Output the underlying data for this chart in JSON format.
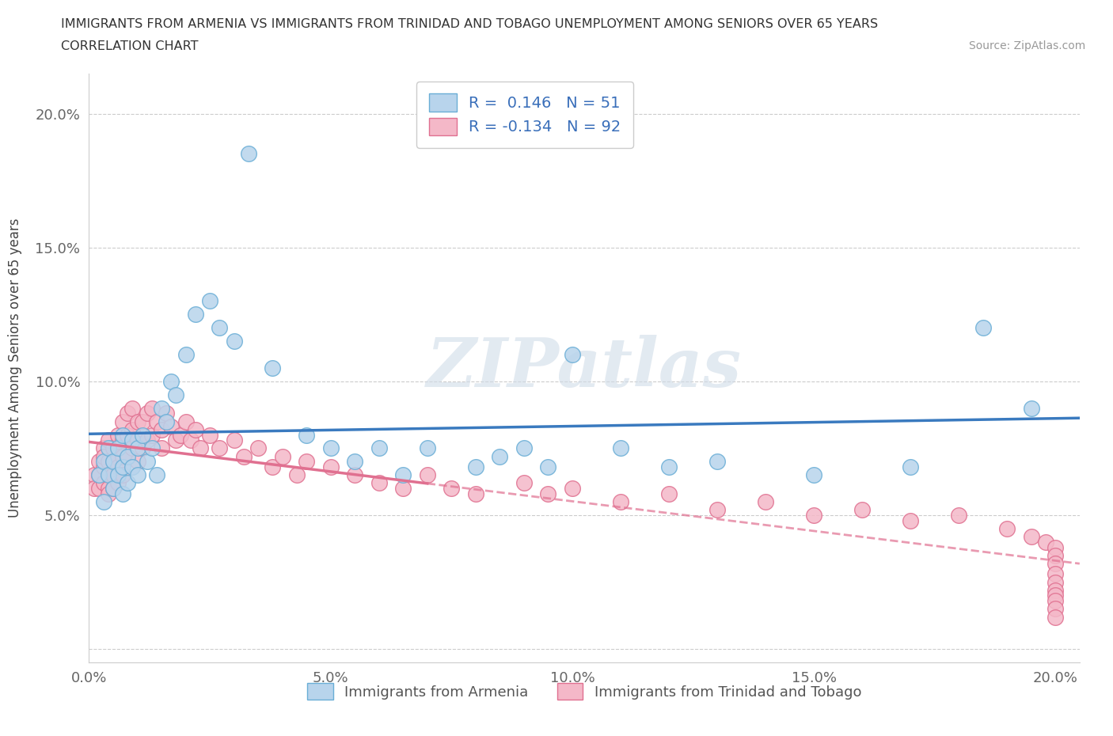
{
  "title_line1": "IMMIGRANTS FROM ARMENIA VS IMMIGRANTS FROM TRINIDAD AND TOBAGO UNEMPLOYMENT AMONG SENIORS OVER 65 YEARS",
  "title_line2": "CORRELATION CHART",
  "source": "Source: ZipAtlas.com",
  "ylabel": "Unemployment Among Seniors over 65 years",
  "xlim": [
    0.0,
    0.205
  ],
  "ylim": [
    -0.005,
    0.215
  ],
  "yticks": [
    0.0,
    0.05,
    0.1,
    0.15,
    0.2
  ],
  "xticks": [
    0.0,
    0.05,
    0.1,
    0.15,
    0.2
  ],
  "ytick_labels": [
    "",
    "5.0%",
    "10.0%",
    "15.0%",
    "20.0%"
  ],
  "xtick_labels": [
    "0.0%",
    "5.0%",
    "10.0%",
    "15.0%",
    "20.0%"
  ],
  "armenia_color": "#b8d4ec",
  "armenia_edge": "#6aaed6",
  "trinidad_color": "#f4b8c8",
  "trinidad_edge": "#e07090",
  "trend_armenia_color": "#3a7abf",
  "trend_trinidad_color": "#e07090",
  "R_armenia": 0.146,
  "N_armenia": 51,
  "R_trinidad": -0.134,
  "N_trinidad": 92,
  "legend_label_armenia": "Immigrants from Armenia",
  "legend_label_trinidad": "Immigrants from Trinidad and Tobago",
  "watermark": "ZIPatlas",
  "armenia_x": [
    0.002,
    0.003,
    0.003,
    0.004,
    0.004,
    0.005,
    0.005,
    0.006,
    0.006,
    0.007,
    0.007,
    0.007,
    0.008,
    0.008,
    0.009,
    0.009,
    0.01,
    0.01,
    0.011,
    0.012,
    0.013,
    0.014,
    0.015,
    0.016,
    0.017,
    0.018,
    0.02,
    0.022,
    0.025,
    0.027,
    0.03,
    0.033,
    0.038,
    0.045,
    0.05,
    0.055,
    0.06,
    0.065,
    0.07,
    0.08,
    0.085,
    0.09,
    0.095,
    0.1,
    0.11,
    0.12,
    0.13,
    0.15,
    0.17,
    0.185,
    0.195
  ],
  "armenia_y": [
    0.065,
    0.07,
    0.055,
    0.075,
    0.065,
    0.07,
    0.06,
    0.075,
    0.065,
    0.08,
    0.068,
    0.058,
    0.072,
    0.062,
    0.078,
    0.068,
    0.075,
    0.065,
    0.08,
    0.07,
    0.075,
    0.065,
    0.09,
    0.085,
    0.1,
    0.095,
    0.11,
    0.125,
    0.13,
    0.12,
    0.115,
    0.185,
    0.105,
    0.08,
    0.075,
    0.07,
    0.075,
    0.065,
    0.075,
    0.068,
    0.072,
    0.075,
    0.068,
    0.11,
    0.075,
    0.068,
    0.07,
    0.065,
    0.068,
    0.12,
    0.09
  ],
  "trinidad_x": [
    0.001,
    0.001,
    0.002,
    0.002,
    0.002,
    0.003,
    0.003,
    0.003,
    0.003,
    0.004,
    0.004,
    0.004,
    0.004,
    0.004,
    0.005,
    0.005,
    0.005,
    0.005,
    0.006,
    0.006,
    0.006,
    0.006,
    0.007,
    0.007,
    0.007,
    0.007,
    0.008,
    0.008,
    0.008,
    0.009,
    0.009,
    0.009,
    0.01,
    0.01,
    0.01,
    0.011,
    0.011,
    0.012,
    0.012,
    0.013,
    0.013,
    0.014,
    0.015,
    0.015,
    0.016,
    0.017,
    0.018,
    0.019,
    0.02,
    0.021,
    0.022,
    0.023,
    0.025,
    0.027,
    0.03,
    0.032,
    0.035,
    0.038,
    0.04,
    0.043,
    0.045,
    0.05,
    0.055,
    0.06,
    0.065,
    0.07,
    0.075,
    0.08,
    0.09,
    0.095,
    0.1,
    0.11,
    0.12,
    0.13,
    0.14,
    0.15,
    0.16,
    0.17,
    0.18,
    0.19,
    0.195,
    0.198,
    0.2,
    0.2,
    0.2,
    0.2,
    0.2,
    0.2,
    0.2,
    0.2,
    0.2,
    0.2
  ],
  "trinidad_y": [
    0.065,
    0.06,
    0.07,
    0.065,
    0.06,
    0.075,
    0.068,
    0.062,
    0.072,
    0.078,
    0.07,
    0.065,
    0.06,
    0.058,
    0.075,
    0.07,
    0.065,
    0.06,
    0.08,
    0.072,
    0.068,
    0.062,
    0.085,
    0.078,
    0.072,
    0.065,
    0.088,
    0.08,
    0.072,
    0.09,
    0.082,
    0.075,
    0.085,
    0.078,
    0.07,
    0.085,
    0.075,
    0.088,
    0.078,
    0.09,
    0.08,
    0.085,
    0.082,
    0.075,
    0.088,
    0.083,
    0.078,
    0.08,
    0.085,
    0.078,
    0.082,
    0.075,
    0.08,
    0.075,
    0.078,
    0.072,
    0.075,
    0.068,
    0.072,
    0.065,
    0.07,
    0.068,
    0.065,
    0.062,
    0.06,
    0.065,
    0.06,
    0.058,
    0.062,
    0.058,
    0.06,
    0.055,
    0.058,
    0.052,
    0.055,
    0.05,
    0.052,
    0.048,
    0.05,
    0.045,
    0.042,
    0.04,
    0.038,
    0.035,
    0.032,
    0.028,
    0.025,
    0.022,
    0.02,
    0.018,
    0.015,
    0.012
  ]
}
